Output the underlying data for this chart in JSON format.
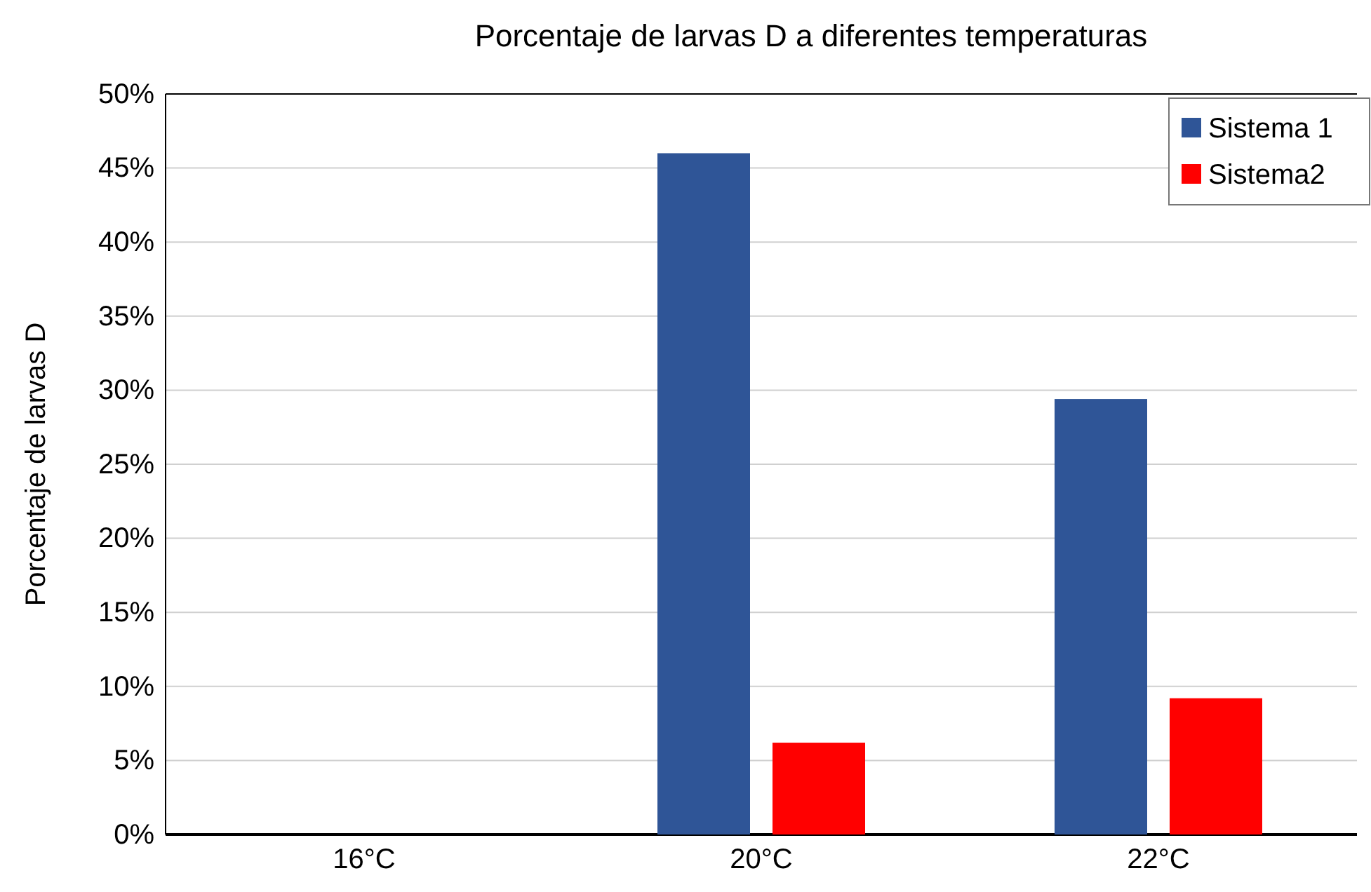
{
  "chart_data": {
    "type": "bar",
    "title": "Porcentaje  de larvas  D a diferentes  temperaturas",
    "ylabel": "Porcentaje de larvas D",
    "categories": [
      "16°C",
      "20°C",
      "22°C"
    ],
    "series": [
      {
        "name": "Sistema 1",
        "color": "#2f5597",
        "values": [
          0,
          46,
          29.4
        ]
      },
      {
        "name": "Sistema2",
        "color": "#ff0000",
        "values": [
          0,
          6.2,
          9.2
        ]
      }
    ],
    "ylim": [
      0,
      50
    ],
    "yticks": [
      {
        "value": 0,
        "label": "0%"
      },
      {
        "value": 5,
        "label": "5%"
      },
      {
        "value": 10,
        "label": "10%"
      },
      {
        "value": 15,
        "label": "15%"
      },
      {
        "value": 20,
        "label": "20%"
      },
      {
        "value": 25,
        "label": "25%"
      },
      {
        "value": 30,
        "label": "30%"
      },
      {
        "value": 35,
        "label": "35%"
      },
      {
        "value": 40,
        "label": "40%"
      },
      {
        "value": 45,
        "label": "45%"
      },
      {
        "value": 50,
        "label": "50%"
      }
    ],
    "grid": "y",
    "legend": "top right"
  }
}
